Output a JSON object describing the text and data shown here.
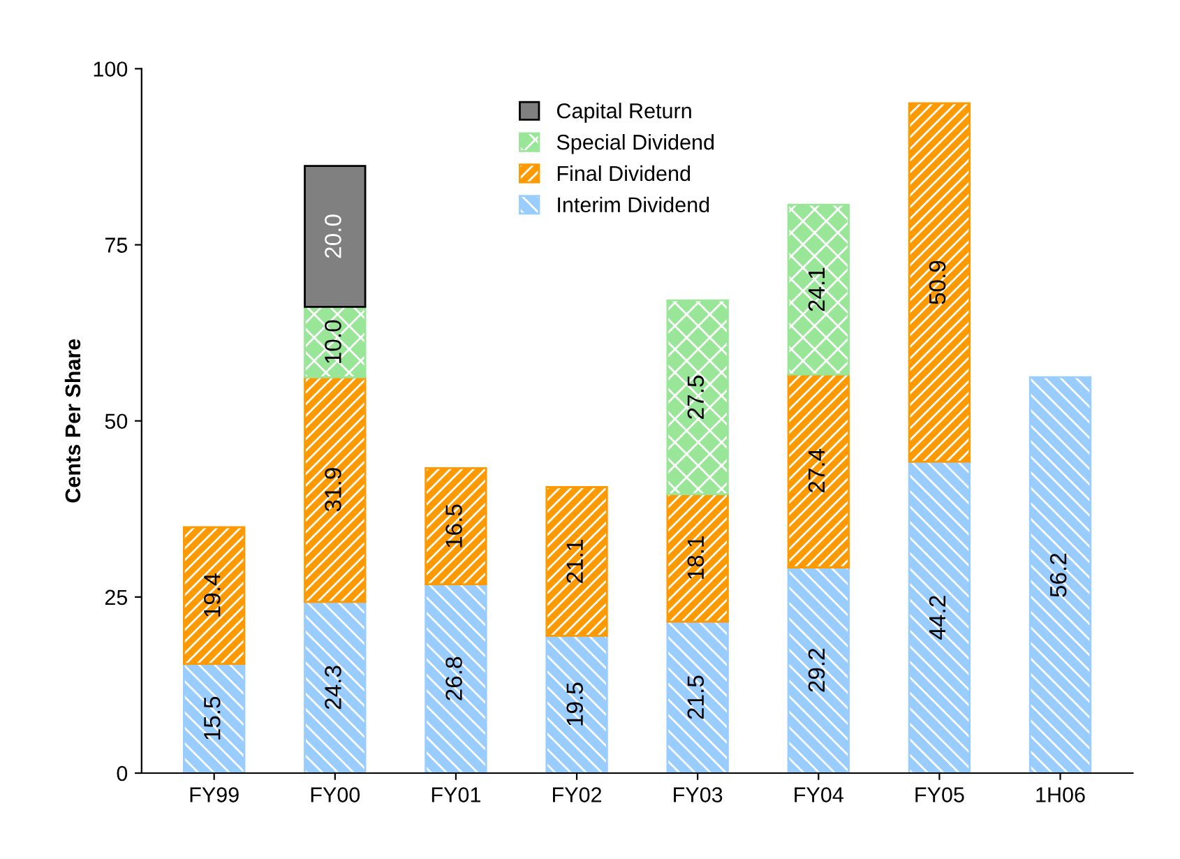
{
  "chart_data": {
    "type": "bar",
    "stacked": true,
    "ylabel": "Cents Per Share",
    "categories": [
      "FY99",
      "FY00",
      "FY01",
      "FY02",
      "FY03",
      "FY04",
      "FY05",
      "1H06"
    ],
    "series": [
      {
        "name": "Interim Dividend",
        "color": "#99ccff",
        "values": [
          15.5,
          24.3,
          26.8,
          19.5,
          21.5,
          29.2,
          44.2,
          56.2
        ],
        "value_labels": [
          "15.5",
          "24.3",
          "26.8",
          "19.5",
          "21.5",
          "29.2",
          "44.2",
          "56.2"
        ]
      },
      {
        "name": "Final Dividend",
        "color": "#ff9900",
        "values": [
          19.4,
          31.9,
          16.5,
          21.1,
          18.1,
          27.4,
          50.9,
          null
        ],
        "value_labels": [
          "19.4",
          "31.9",
          "16.5",
          "21.1",
          "18.1",
          "27.4",
          "50.9",
          null
        ]
      },
      {
        "name": "Special Dividend",
        "color": "#99e699",
        "values": [
          null,
          10,
          null,
          null,
          27.5,
          24.1,
          null,
          null
        ],
        "value_labels": [
          null,
          "10.0",
          null,
          null,
          "27.5",
          "24.1",
          null,
          null
        ]
      },
      {
        "name": "Capital Return",
        "color": "#808080",
        "values": [
          null,
          20,
          null,
          null,
          null,
          null,
          null,
          null
        ],
        "value_labels": [
          null,
          "20.0",
          null,
          null,
          null,
          null,
          null,
          null
        ]
      }
    ],
    "ylim": [
      0,
      100
    ],
    "yticks": [
      0,
      25,
      50,
      75,
      100
    ],
    "grid": false,
    "legend": "top"
  }
}
